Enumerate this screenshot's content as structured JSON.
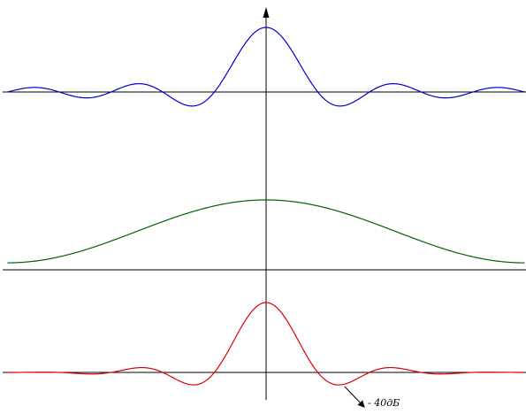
{
  "chart_data": {
    "type": "line",
    "title": "",
    "xlabel": "",
    "ylabel": "",
    "grid": false,
    "legend": "none",
    "x_range": [
      -5,
      5
    ],
    "series": [
      {
        "color": "#0000cc",
        "function": "sinc",
        "peak": 1.0,
        "first_sidelobe": -0.3
      },
      {
        "color": "#006400",
        "function": "bell",
        "peak": 1.0,
        "edge_value": 0.1
      },
      {
        "color": "#dd0000",
        "function": "windowed-sinc",
        "peak": 1.0,
        "first_sidelobe": -0.12
      }
    ],
    "annotation": {
      "text": "- 40дБ",
      "target_series": 2
    }
  }
}
